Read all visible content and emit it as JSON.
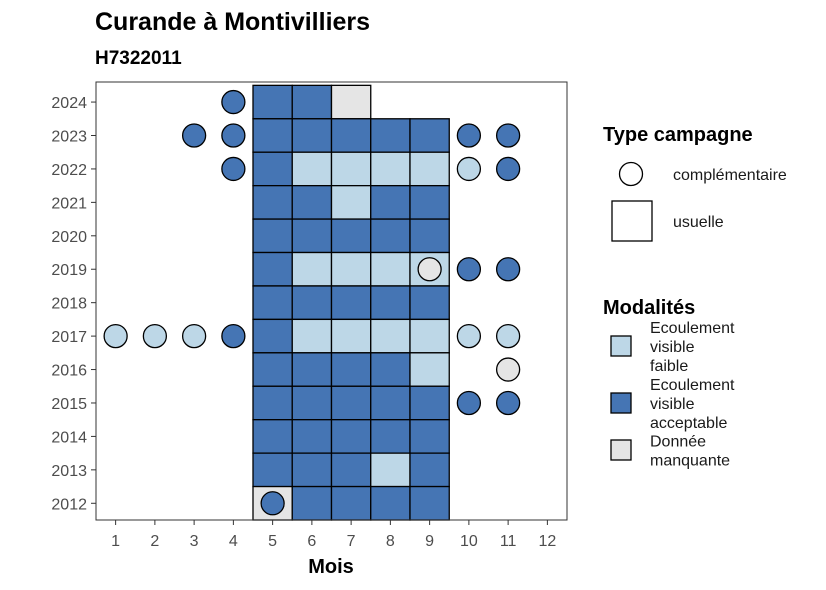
{
  "chart_data": {
    "type": "heatmap",
    "title": "Curande à Montivilliers",
    "subtitle": "H7322011",
    "xlabel": "Mois",
    "ylabel": "",
    "x_ticks": [
      1,
      2,
      3,
      4,
      5,
      6,
      7,
      8,
      9,
      10,
      11,
      12
    ],
    "y_ticks": [
      2012,
      2013,
      2014,
      2015,
      2016,
      2017,
      2018,
      2019,
      2020,
      2021,
      2022,
      2023,
      2024
    ],
    "xlim": [
      0.5,
      12.5
    ],
    "ylim": [
      2011.5,
      2024.6
    ],
    "grid": false,
    "legend_placement": "right",
    "colors": {
      "faible": "#bdd7e7",
      "acceptable": "#4575b4",
      "manquante": "#e5e5e5"
    },
    "legends": {
      "shape": {
        "title": "Type campagne",
        "items": [
          {
            "key": "complementaire",
            "label": "complémentaire"
          },
          {
            "key": "usuelle",
            "label": "usuelle"
          }
        ]
      },
      "fill": {
        "title": "Modalités",
        "items": [
          {
            "key": "faible",
            "lines": [
              "Ecoulement",
              "visible",
              "faible"
            ]
          },
          {
            "key": "acceptable",
            "lines": [
              "Ecoulement",
              "visible",
              "acceptable"
            ]
          },
          {
            "key": "manquante",
            "lines": [
              "Donnée",
              "manquante"
            ]
          }
        ]
      }
    },
    "usuelle": [
      {
        "year": 2024,
        "months": {
          "5": "acceptable",
          "6": "acceptable",
          "7": "manquante"
        }
      },
      {
        "year": 2023,
        "months": {
          "5": "acceptable",
          "6": "acceptable",
          "7": "acceptable",
          "8": "acceptable",
          "9": "acceptable"
        }
      },
      {
        "year": 2022,
        "months": {
          "5": "acceptable",
          "6": "faible",
          "7": "faible",
          "8": "faible",
          "9": "faible"
        }
      },
      {
        "year": 2021,
        "months": {
          "5": "acceptable",
          "6": "acceptable",
          "7": "faible",
          "8": "acceptable",
          "9": "acceptable"
        }
      },
      {
        "year": 2020,
        "months": {
          "5": "acceptable",
          "6": "acceptable",
          "7": "acceptable",
          "8": "acceptable",
          "9": "acceptable"
        }
      },
      {
        "year": 2019,
        "months": {
          "5": "acceptable",
          "6": "faible",
          "7": "faible",
          "8": "faible",
          "9": "faible"
        }
      },
      {
        "year": 2018,
        "months": {
          "5": "acceptable",
          "6": "acceptable",
          "7": "acceptable",
          "8": "acceptable",
          "9": "acceptable"
        }
      },
      {
        "year": 2017,
        "months": {
          "5": "acceptable",
          "6": "faible",
          "7": "faible",
          "8": "faible",
          "9": "faible"
        }
      },
      {
        "year": 2016,
        "months": {
          "5": "acceptable",
          "6": "acceptable",
          "7": "acceptable",
          "8": "acceptable",
          "9": "faible"
        }
      },
      {
        "year": 2015,
        "months": {
          "5": "acceptable",
          "6": "acceptable",
          "7": "acceptable",
          "8": "acceptable",
          "9": "acceptable"
        }
      },
      {
        "year": 2014,
        "months": {
          "5": "acceptable",
          "6": "acceptable",
          "7": "acceptable",
          "8": "acceptable",
          "9": "acceptable"
        }
      },
      {
        "year": 2013,
        "months": {
          "5": "acceptable",
          "6": "acceptable",
          "7": "acceptable",
          "8": "faible",
          "9": "acceptable"
        }
      },
      {
        "year": 2012,
        "months": {
          "5": "manquante",
          "6": "acceptable",
          "7": "acceptable",
          "8": "acceptable",
          "9": "acceptable"
        }
      }
    ],
    "complementaire": [
      {
        "year": 2024,
        "month": 4,
        "value": "acceptable"
      },
      {
        "year": 2023,
        "month": 3,
        "value": "acceptable"
      },
      {
        "year": 2023,
        "month": 4,
        "value": "acceptable"
      },
      {
        "year": 2023,
        "month": 10,
        "value": "acceptable"
      },
      {
        "year": 2023,
        "month": 11,
        "value": "acceptable"
      },
      {
        "year": 2022,
        "month": 4,
        "value": "acceptable"
      },
      {
        "year": 2022,
        "month": 10,
        "value": "faible"
      },
      {
        "year": 2022,
        "month": 11,
        "value": "acceptable"
      },
      {
        "year": 2019,
        "month": 9,
        "value": "manquante"
      },
      {
        "year": 2019,
        "month": 10,
        "value": "acceptable"
      },
      {
        "year": 2019,
        "month": 11,
        "value": "acceptable"
      },
      {
        "year": 2017,
        "month": 1,
        "value": "faible"
      },
      {
        "year": 2017,
        "month": 2,
        "value": "faible"
      },
      {
        "year": 2017,
        "month": 3,
        "value": "faible"
      },
      {
        "year": 2017,
        "month": 4,
        "value": "acceptable"
      },
      {
        "year": 2017,
        "month": 10,
        "value": "faible"
      },
      {
        "year": 2017,
        "month": 11,
        "value": "faible"
      },
      {
        "year": 2016,
        "month": 11,
        "value": "manquante"
      },
      {
        "year": 2015,
        "month": 10,
        "value": "acceptable"
      },
      {
        "year": 2015,
        "month": 11,
        "value": "acceptable"
      },
      {
        "year": 2012,
        "month": 5,
        "value": "acceptable"
      }
    ]
  }
}
